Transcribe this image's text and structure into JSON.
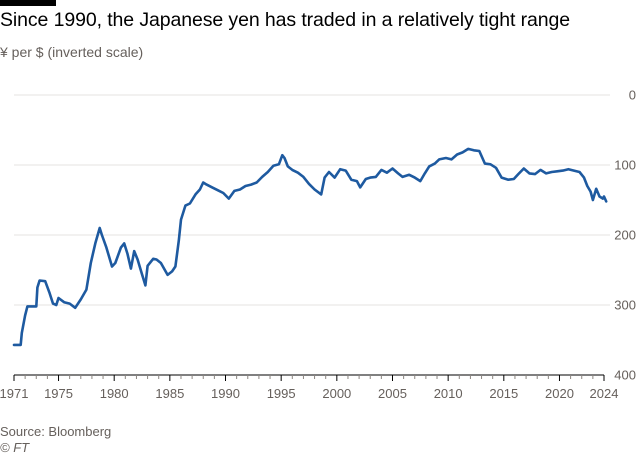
{
  "title": "Since 1990, the Japanese yen has traded in a relatively tight range",
  "subtitle": "¥ per $ (inverted scale)",
  "source": "Source: Bloomberg",
  "credit": "© FT",
  "colors": {
    "line": "#1e5aa0",
    "grid": "#e6e3e0",
    "text": "#66605c",
    "title": "#000000"
  },
  "chart_data": {
    "type": "line",
    "title": "Since 1990, the Japanese yen has traded in a relatively tight range",
    "ylabel": "¥ per $ (inverted scale)",
    "xlabel": "",
    "y_inverted": true,
    "ylim": [
      0,
      400
    ],
    "xlim": [
      1971,
      2024
    ],
    "y_ticks": [
      0,
      100,
      200,
      300,
      400
    ],
    "x_ticks": [
      1971,
      1975,
      1980,
      1985,
      1990,
      1995,
      2000,
      2005,
      2010,
      2015,
      2020,
      2024
    ],
    "grid": true,
    "series": [
      {
        "name": "¥ per $",
        "x": [
          1971.0,
          1971.6,
          1971.7,
          1972.0,
          1972.2,
          1973.0,
          1973.1,
          1973.3,
          1973.8,
          1974.2,
          1974.5,
          1974.8,
          1975.0,
          1975.5,
          1976.0,
          1976.5,
          1977.0,
          1977.5,
          1977.9,
          1978.3,
          1978.7,
          1978.9,
          1979.3,
          1979.8,
          1980.1,
          1980.6,
          1980.9,
          1981.2,
          1981.5,
          1981.8,
          1982.1,
          1982.5,
          1982.8,
          1983.0,
          1983.5,
          1983.8,
          1984.2,
          1984.8,
          1985.2,
          1985.5,
          1985.8,
          1986.0,
          1986.4,
          1986.8,
          1987.3,
          1987.7,
          1988.0,
          1988.3,
          1988.8,
          1989.3,
          1989.8,
          1990.3,
          1990.8,
          1991.3,
          1991.8,
          1992.3,
          1992.8,
          1993.3,
          1993.8,
          1994.3,
          1994.8,
          1995.1,
          1995.3,
          1995.6,
          1996.0,
          1996.5,
          1997.0,
          1997.5,
          1998.0,
          1998.6,
          1998.9,
          1999.3,
          1999.8,
          2000.3,
          2000.8,
          2001.3,
          2001.8,
          2002.1,
          2002.6,
          2003.0,
          2003.5,
          2004.0,
          2004.5,
          2005.0,
          2005.5,
          2005.9,
          2006.5,
          2007.0,
          2007.5,
          2007.9,
          2008.3,
          2008.8,
          2009.2,
          2009.8,
          2010.3,
          2010.8,
          2011.3,
          2011.8,
          2012.3,
          2012.8,
          2013.3,
          2013.8,
          2014.3,
          2014.8,
          2015.4,
          2015.9,
          2016.3,
          2016.8,
          2017.3,
          2017.8,
          2018.3,
          2018.8,
          2019.3,
          2019.8,
          2020.3,
          2020.8,
          2021.3,
          2021.8,
          2022.2,
          2022.5,
          2022.8,
          2023.0,
          2023.3,
          2023.6,
          2023.9,
          2024.0,
          2024.2
        ],
        "values": [
          357,
          357,
          340,
          315,
          302,
          302,
          275,
          265,
          266,
          283,
          298,
          300,
          290,
          296,
          298,
          304,
          292,
          278,
          240,
          212,
          190,
          200,
          218,
          245,
          240,
          218,
          212,
          227,
          248,
          223,
          235,
          256,
          272,
          244,
          234,
          235,
          240,
          257,
          252,
          245,
          208,
          178,
          158,
          155,
          142,
          135,
          125,
          128,
          132,
          136,
          140,
          148,
          137,
          135,
          130,
          128,
          125,
          117,
          110,
          101,
          99,
          86,
          90,
          102,
          107,
          111,
          117,
          127,
          135,
          142,
          118,
          110,
          118,
          106,
          108,
          121,
          123,
          132,
          120,
          118,
          117,
          107,
          111,
          105,
          112,
          117,
          114,
          118,
          123,
          112,
          102,
          98,
          92,
          90,
          92,
          85,
          82,
          77,
          79,
          80,
          98,
          99,
          104,
          118,
          121,
          120,
          113,
          105,
          112,
          113,
          107,
          112,
          110,
          109,
          108,
          106,
          108,
          110,
          118,
          130,
          138,
          150,
          134,
          145,
          148,
          145,
          152
        ]
      }
    ]
  }
}
